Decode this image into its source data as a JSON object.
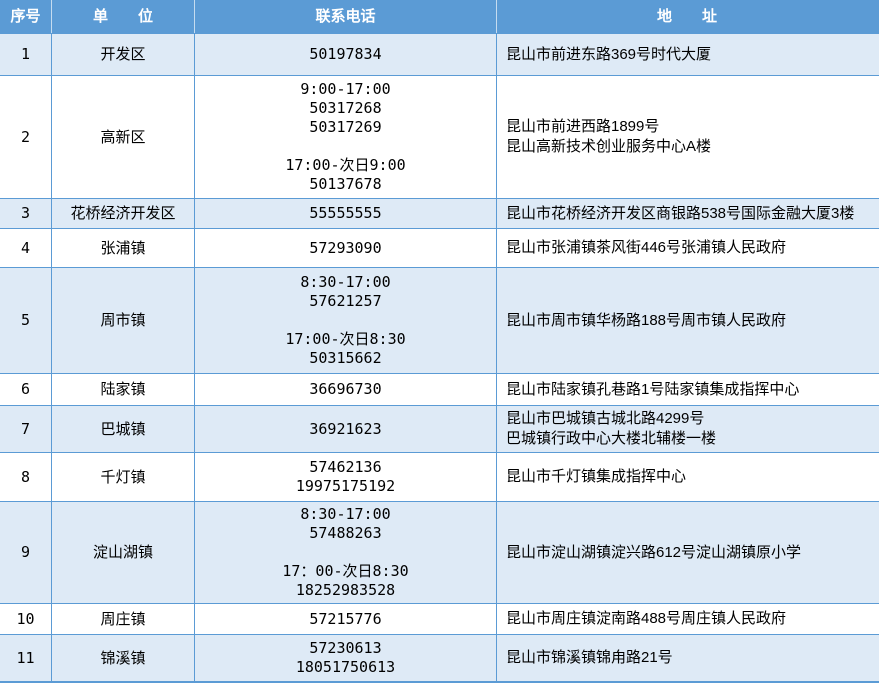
{
  "colors": {
    "header_bg": "#5b9bd5",
    "header_text": "#ffffff",
    "row_shaded_bg": "#deeaf6",
    "row_plain_bg": "#ffffff",
    "grid_line": "#5b9bd5",
    "body_text": "#000000"
  },
  "table": {
    "headers": [
      {
        "id": "index",
        "label": "序号"
      },
      {
        "id": "unit",
        "label": "单　　位"
      },
      {
        "id": "phone",
        "label": "联系电话"
      },
      {
        "id": "address",
        "label": "地　　址"
      }
    ],
    "rows": [
      {
        "index": "1",
        "unit": "开发区",
        "phone_lines": [
          "50197834"
        ],
        "address_lines": [
          "昆山市前进东路369号时代大厦"
        ]
      },
      {
        "index": "2",
        "unit": "高新区",
        "phone_lines": [
          "9:00-17:00",
          "50317268",
          "50317269",
          "",
          "17:00-次日9:00",
          "50137678"
        ],
        "address_lines": [
          "昆山市前进西路1899号",
          "昆山高新技术创业服务中心A楼"
        ]
      },
      {
        "index": "3",
        "unit": "花桥经济开发区",
        "phone_lines": [
          "55555555"
        ],
        "address_lines": [
          "昆山市花桥经济开发区商银路538号国际金融大厦3楼"
        ]
      },
      {
        "index": "4",
        "unit": "张浦镇",
        "phone_lines": [
          "57293090"
        ],
        "address_lines": [
          "昆山市张浦镇茶风街446号张浦镇人民政府"
        ]
      },
      {
        "index": "5",
        "unit": "周市镇",
        "phone_lines": [
          "8:30-17:00",
          "57621257",
          "",
          "17:00-次日8:30",
          "50315662"
        ],
        "address_lines": [
          "昆山市周市镇华杨路188号周市镇人民政府"
        ]
      },
      {
        "index": "6",
        "unit": "陆家镇",
        "phone_lines": [
          "36696730"
        ],
        "address_lines": [
          "昆山市陆家镇孔巷路1号陆家镇集成指挥中心"
        ]
      },
      {
        "index": "7",
        "unit": "巴城镇",
        "phone_lines": [
          "36921623"
        ],
        "address_lines": [
          "昆山市巴城镇古城北路4299号",
          "巴城镇行政中心大楼北辅楼一楼"
        ]
      },
      {
        "index": "8",
        "unit": "千灯镇",
        "phone_lines": [
          "57462136",
          "19975175192"
        ],
        "address_lines": [
          "昆山市千灯镇集成指挥中心"
        ]
      },
      {
        "index": "9",
        "unit": "淀山湖镇",
        "phone_lines": [
          "8:30-17:00",
          "57488263",
          "",
          "17：00-次日8:30",
          "18252983528"
        ],
        "address_lines": [
          "昆山市淀山湖镇淀兴路612号淀山湖镇原小学"
        ]
      },
      {
        "index": "10",
        "unit": "周庄镇",
        "phone_lines": [
          "57215776"
        ],
        "address_lines": [
          "昆山市周庄镇淀南路488号周庄镇人民政府"
        ]
      },
      {
        "index": "11",
        "unit": "锦溪镇",
        "phone_lines": [
          "57230613",
          "18051750613"
        ],
        "address_lines": [
          "昆山市锦溪镇锦甪路21号"
        ]
      }
    ]
  }
}
